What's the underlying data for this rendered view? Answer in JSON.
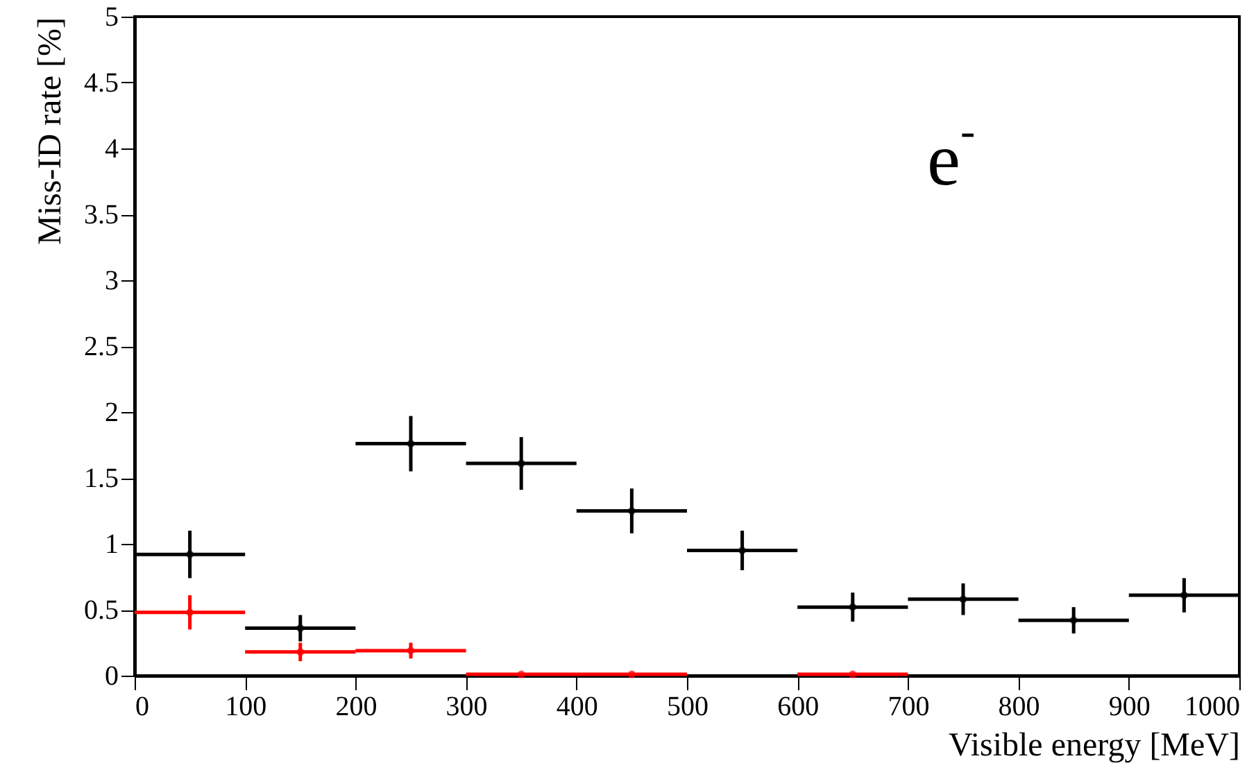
{
  "chart_data": {
    "type": "scatter",
    "xlabel": "Visible energy [MeV]",
    "ylabel": "Miss-ID rate [%]",
    "annotations": [
      "e$^{-}$"
    ],
    "x": [
      50,
      150,
      250,
      350,
      450,
      550,
      650,
      750,
      850,
      950
    ],
    "xlim": [
      0,
      1000
    ],
    "xticks": [
      0,
      100,
      200,
      300,
      400,
      500,
      600,
      700,
      800,
      900,
      1000
    ],
    "ylim": [
      0,
      5
    ],
    "yticks": [
      0,
      0.5,
      1,
      1.5,
      2,
      2.5,
      3,
      3.5,
      4,
      4.5,
      5
    ],
    "grid": false,
    "series": [
      {
        "color": "#000000",
        "values": [
          0.92,
          0.36,
          1.76,
          1.61,
          1.25,
          0.95,
          0.52,
          0.58,
          0.42,
          0.61
        ],
        "errors": [
          0.18,
          0.1,
          0.21,
          0.2,
          0.17,
          0.15,
          0.11,
          0.12,
          0.1,
          0.13
        ],
        "xerrors": [
          50,
          50,
          50,
          50,
          50,
          50,
          50,
          50,
          50,
          50
        ]
      },
      {
        "color": "#ff0000",
        "values": [
          0.48,
          0.18,
          0.19,
          0.01,
          0.01,
          null,
          0.01,
          null,
          null,
          null
        ],
        "errors": [
          0.13,
          0.07,
          0.06,
          null,
          null,
          null,
          null,
          null,
          null,
          null
        ],
        "xerrors": [
          50,
          50,
          50,
          50,
          50,
          null,
          50,
          null,
          null,
          null
        ]
      }
    ]
  }
}
